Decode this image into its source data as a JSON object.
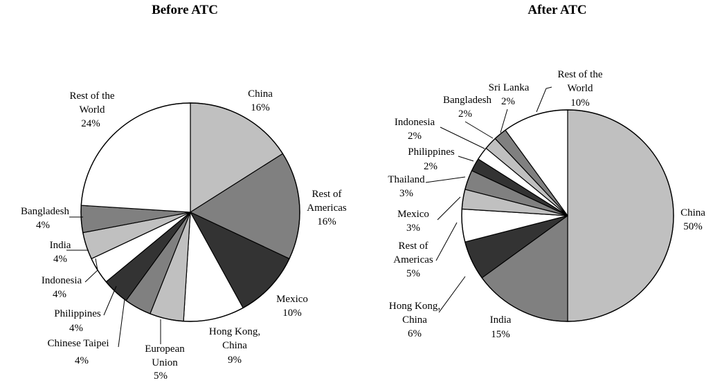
{
  "chart_data": [
    {
      "type": "pie",
      "title": "Before ATC",
      "slices": [
        {
          "name": "China",
          "value": 16,
          "label": "16%",
          "color": "#c0c0c0"
        },
        {
          "name": "Rest of Americas",
          "value": 16,
          "label": "16%",
          "color": "#808080"
        },
        {
          "name": "Mexico",
          "value": 10,
          "label": "10%",
          "color": "#333333"
        },
        {
          "name": "Hong Kong, China",
          "value": 9,
          "label": "9%",
          "color": "#ffffff"
        },
        {
          "name": "European Union",
          "value": 5,
          "label": "5%",
          "color": "#c0c0c0"
        },
        {
          "name": "Chinese Taipei",
          "value": 4,
          "label": "4%",
          "color": "#808080"
        },
        {
          "name": "Philippines",
          "value": 4,
          "label": "4%",
          "color": "#333333"
        },
        {
          "name": "Indonesia",
          "value": 4,
          "label": "4%",
          "color": "#ffffff"
        },
        {
          "name": "India",
          "value": 4,
          "label": "4%",
          "color": "#c0c0c0"
        },
        {
          "name": "Bangladesh",
          "value": 4,
          "label": "4%",
          "color": "#808080"
        },
        {
          "name": "Rest of the World",
          "value": 24,
          "label": "24%",
          "color": "#ffffff"
        }
      ]
    },
    {
      "type": "pie",
      "title": "After ATC",
      "slices": [
        {
          "name": "China",
          "value": 50,
          "label": "50%",
          "color": "#c0c0c0"
        },
        {
          "name": "India",
          "value": 15,
          "label": "15%",
          "color": "#808080"
        },
        {
          "name": "Hong Kong, China",
          "value": 6,
          "label": "6%",
          "color": "#333333"
        },
        {
          "name": "Rest of Americas",
          "value": 5,
          "label": "5%",
          "color": "#ffffff"
        },
        {
          "name": "Mexico",
          "value": 3,
          "label": "3%",
          "color": "#c0c0c0"
        },
        {
          "name": "Thailand",
          "value": 3,
          "label": "3%",
          "color": "#808080"
        },
        {
          "name": "Philippines",
          "value": 2,
          "label": "2%",
          "color": "#333333"
        },
        {
          "name": "Indonesia",
          "value": 2,
          "label": "2%",
          "color": "#ffffff"
        },
        {
          "name": "Bangladesh",
          "value": 2,
          "label": "2%",
          "color": "#c0c0c0"
        },
        {
          "name": "Sri Lanka",
          "value": 2,
          "label": "2%",
          "color": "#808080"
        },
        {
          "name": "Rest of the World",
          "value": 10,
          "label": "10%",
          "color": "#ffffff"
        }
      ]
    }
  ]
}
